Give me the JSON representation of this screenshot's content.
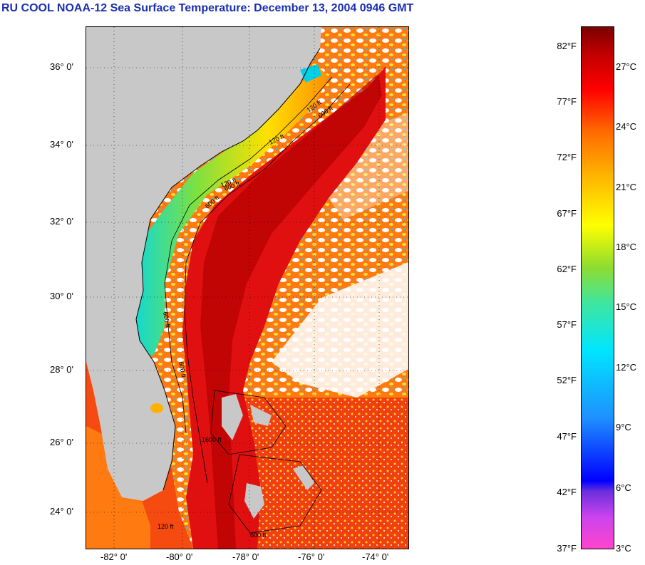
{
  "title": "RU COOL  NOAA-12  Sea Surface Temperature:  December 13, 2004 0946 GMT",
  "map": {
    "lat_labels": [
      "36° 0'",
      "34° 0'",
      "32° 0'",
      "30° 0'",
      "28° 0'",
      "26° 0'",
      "24° 0'"
    ],
    "lon_labels": [
      "-82° 0'",
      "-80° 0'",
      "-78° 0'",
      "-76° 0'",
      "-74° 0'"
    ],
    "contour_labels": [
      "120 ft",
      "600 ft",
      "120 ft",
      "600 ft",
      "120 ft",
      "600 ft",
      "600 ft",
      "600 ft",
      "120 ft",
      "600 ft",
      "1600 ft"
    ],
    "land_color": "#c8c8c8",
    "stream_color": "#e01010"
  },
  "colorbar": {
    "fahrenheit_labels": [
      "82°F",
      "77°F",
      "72°F",
      "67°F",
      "62°F",
      "57°F",
      "52°F",
      "47°F",
      "42°F",
      "37°F"
    ],
    "celsius_labels": [
      "27°C",
      "24°C",
      "21°C",
      "18°C",
      "15°C",
      "12°C",
      "9°C",
      "6°C",
      "3°C"
    ]
  }
}
